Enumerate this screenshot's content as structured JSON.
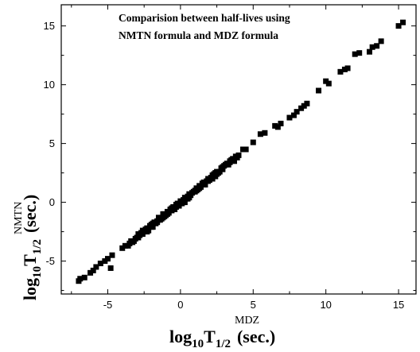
{
  "chart_data": {
    "type": "scatter",
    "title_lines": [
      "Comparision between half-lives using",
      "NMTN formula and MDZ formula"
    ],
    "xlabel": {
      "base": "log",
      "base_sub": "10",
      "main": "T",
      "sub": "1/2",
      "sup": "MDZ",
      "unit": "(sec.)"
    },
    "ylabel": {
      "base": "log",
      "base_sub": "10",
      "main": "T",
      "sub": "1/2",
      "sup": "NMTN",
      "unit": "(sec.)"
    },
    "xlim": [
      -8.2,
      16.2
    ],
    "ylim": [
      -7.8,
      16.8
    ],
    "xticks": [
      -5,
      0,
      5,
      10,
      15
    ],
    "yticks": [
      -5,
      0,
      5,
      10,
      15
    ],
    "xtick_labels": [
      "-5",
      "0",
      "5",
      "10",
      "15"
    ],
    "ytick_labels": [
      "-5",
      "0",
      "5",
      "10",
      "15"
    ],
    "marker": "square",
    "color": "#000000",
    "grid": false,
    "points": [
      [
        -7.0,
        -6.7
      ],
      [
        -6.9,
        -6.5
      ],
      [
        -6.6,
        -6.4
      ],
      [
        -6.2,
        -6.0
      ],
      [
        -6.0,
        -5.8
      ],
      [
        -5.8,
        -5.5
      ],
      [
        -5.5,
        -5.2
      ],
      [
        -5.2,
        -5.0
      ],
      [
        -5.0,
        -4.8
      ],
      [
        -4.8,
        -5.6
      ],
      [
        -4.7,
        -4.5
      ],
      [
        -4.0,
        -3.9
      ],
      [
        -3.8,
        -3.7
      ],
      [
        -3.6,
        -3.7
      ],
      [
        -3.4,
        -3.3
      ],
      [
        -3.2,
        -3.3
      ],
      [
        -3.0,
        -3.0
      ],
      [
        -2.9,
        -2.7
      ],
      [
        -2.7,
        -2.6
      ],
      [
        -2.5,
        -2.5
      ],
      [
        -2.3,
        -2.2
      ],
      [
        -2.2,
        -2.4
      ],
      [
        -2.0,
        -1.9
      ],
      [
        -1.9,
        -2.1
      ],
      [
        -1.8,
        -1.7
      ],
      [
        -1.6,
        -1.6
      ],
      [
        -1.5,
        -1.3
      ],
      [
        -1.3,
        -1.4
      ],
      [
        -1.2,
        -1.0
      ],
      [
        -1.0,
        -1.1
      ],
      [
        -0.9,
        -0.8
      ],
      [
        -0.7,
        -0.7
      ],
      [
        -0.5,
        -0.4
      ],
      [
        -0.4,
        -0.6
      ],
      [
        -0.2,
        -0.1
      ],
      [
        -0.1,
        -0.3
      ],
      [
        0.0,
        0.1
      ],
      [
        0.2,
        0.2
      ],
      [
        0.3,
        0.0
      ],
      [
        0.5,
        0.5
      ],
      [
        0.6,
        0.4
      ],
      [
        0.8,
        0.8
      ],
      [
        1.0,
        1.0
      ],
      [
        1.2,
        1.1
      ],
      [
        1.3,
        1.4
      ],
      [
        1.5,
        1.6
      ],
      [
        1.7,
        1.5
      ],
      [
        1.9,
        2.0
      ],
      [
        2.1,
        2.1
      ],
      [
        2.3,
        2.4
      ],
      [
        2.5,
        2.6
      ],
      [
        2.7,
        2.6
      ],
      [
        2.9,
        3.0
      ],
      [
        3.2,
        3.3
      ],
      [
        3.4,
        3.4
      ],
      [
        3.6,
        3.7
      ],
      [
        3.8,
        3.9
      ],
      [
        4.0,
        4.0
      ],
      [
        4.3,
        4.5
      ],
      [
        4.5,
        4.5
      ],
      [
        5.0,
        5.1
      ],
      [
        5.5,
        5.8
      ],
      [
        5.8,
        5.9
      ],
      [
        6.5,
        6.5
      ],
      [
        6.7,
        6.4
      ],
      [
        6.9,
        6.7
      ],
      [
        7.5,
        7.2
      ],
      [
        7.8,
        7.4
      ],
      [
        8.0,
        7.7
      ],
      [
        8.3,
        8.0
      ],
      [
        8.5,
        8.2
      ],
      [
        8.7,
        8.4
      ],
      [
        9.5,
        9.5
      ],
      [
        10.0,
        10.3
      ],
      [
        10.2,
        10.1
      ],
      [
        11.0,
        11.1
      ],
      [
        11.3,
        11.3
      ],
      [
        11.5,
        11.4
      ],
      [
        12.0,
        12.6
      ],
      [
        12.3,
        12.7
      ],
      [
        13.0,
        12.8
      ],
      [
        13.2,
        13.2
      ],
      [
        13.5,
        13.3
      ],
      [
        13.8,
        13.7
      ],
      [
        15.0,
        15.0
      ],
      [
        15.3,
        15.3
      ],
      [
        -3.5,
        -3.5
      ],
      [
        -3.1,
        -3.1
      ],
      [
        -2.8,
        -2.8
      ],
      [
        -2.6,
        -2.7
      ],
      [
        -2.4,
        -2.3
      ],
      [
        -2.1,
        -2.0
      ],
      [
        -1.7,
        -1.8
      ],
      [
        -1.4,
        -1.5
      ],
      [
        -1.1,
        -1.2
      ],
      [
        -0.8,
        -0.9
      ],
      [
        -0.6,
        -0.5
      ],
      [
        -0.3,
        -0.2
      ],
      [
        0.1,
        -0.1
      ],
      [
        0.4,
        0.3
      ],
      [
        0.7,
        0.6
      ],
      [
        0.9,
        0.9
      ],
      [
        1.1,
        1.2
      ],
      [
        1.4,
        1.3
      ],
      [
        1.6,
        1.7
      ],
      [
        1.8,
        1.8
      ],
      [
        2.0,
        1.9
      ],
      [
        2.2,
        2.3
      ],
      [
        2.4,
        2.2
      ],
      [
        2.6,
        2.5
      ],
      [
        2.8,
        2.9
      ],
      [
        3.0,
        3.1
      ],
      [
        3.3,
        3.2
      ],
      [
        3.5,
        3.6
      ],
      [
        3.7,
        3.5
      ],
      [
        3.9,
        3.8
      ],
      [
        -3.3,
        -3.4
      ],
      [
        -2.9,
        -3.0
      ],
      [
        -2.6,
        -2.4
      ],
      [
        -2.3,
        -2.5
      ],
      [
        -1.9,
        -1.8
      ],
      [
        -1.6,
        -1.7
      ],
      [
        -1.2,
        -1.3
      ],
      [
        -0.9,
        -1.0
      ],
      [
        -0.6,
        -0.7
      ],
      [
        -0.3,
        -0.4
      ],
      [
        0.0,
        -0.1
      ],
      [
        0.3,
        0.4
      ],
      [
        0.6,
        0.7
      ],
      [
        1.0,
        0.9
      ],
      [
        1.3,
        1.2
      ],
      [
        1.6,
        1.5
      ],
      [
        1.9,
        1.8
      ],
      [
        2.2,
        2.0
      ],
      [
        2.5,
        2.4
      ],
      [
        2.9,
        2.8
      ],
      [
        3.1,
        3.2
      ],
      [
        3.4,
        3.5
      ],
      [
        0.2,
        0.0
      ],
      [
        -0.2,
        -0.3
      ],
      [
        0.5,
        0.3
      ],
      [
        -0.7,
        -0.6
      ],
      [
        1.1,
        1.0
      ],
      [
        -1.1,
        -1.0
      ],
      [
        2.4,
        2.5
      ],
      [
        -2.0,
        -2.1
      ]
    ]
  }
}
